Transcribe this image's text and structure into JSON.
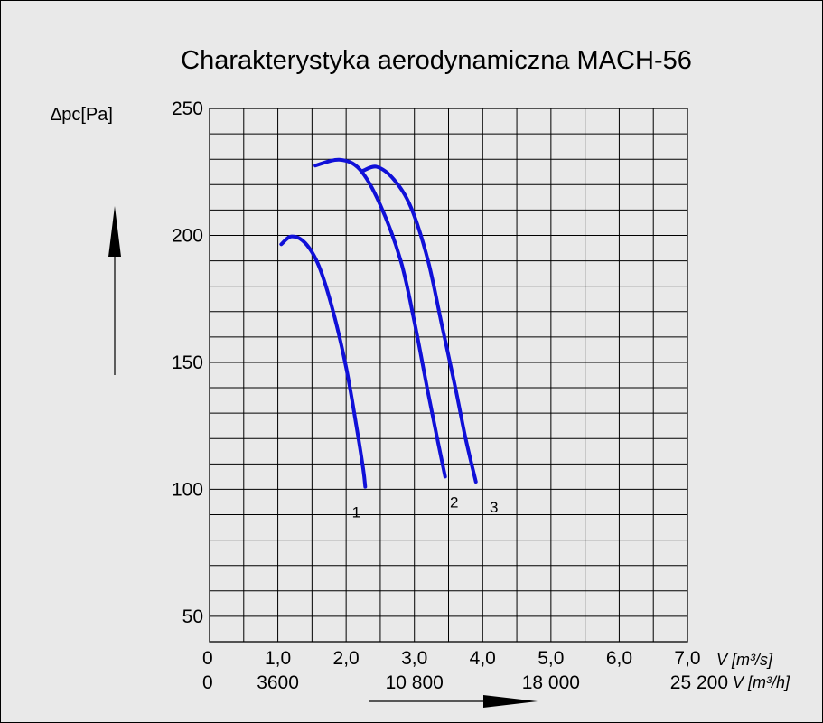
{
  "chart_data": {
    "type": "line",
    "title": "Charakterystyka aerodynamiczna MACH-56",
    "ylabel": "∆pc[Pa]",
    "xlabel_primary_unit": "V [m³/s]",
    "xlabel_secondary_unit": "V [m³/h]",
    "xlim": [
      0,
      7.0
    ],
    "ylim": [
      40,
      250
    ],
    "y_ticks": [
      "250",
      "200",
      "150",
      "100",
      "50"
    ],
    "x_ticks_primary": [
      "0",
      "1,0",
      "2,0",
      "3,0",
      "4,0",
      "5,0",
      "6,0",
      "7,0"
    ],
    "x_ticks_secondary": [
      "0",
      "3600",
      "10 800",
      "18 000",
      "25 200"
    ],
    "grid": true,
    "series": [
      {
        "name": "1",
        "color": "#1010d8",
        "points": [
          [
            1.05,
            196.5
          ],
          [
            1.2,
            199.6
          ],
          [
            1.4,
            197
          ],
          [
            1.6,
            188
          ],
          [
            1.8,
            171
          ],
          [
            2.0,
            148
          ],
          [
            2.15,
            125
          ],
          [
            2.25,
            108
          ],
          [
            2.28,
            101
          ]
        ]
      },
      {
        "name": "2",
        "color": "#1010d8",
        "points": [
          [
            1.55,
            227.5
          ],
          [
            1.9,
            229.8
          ],
          [
            2.2,
            226
          ],
          [
            2.5,
            212
          ],
          [
            2.8,
            190
          ],
          [
            3.0,
            166
          ],
          [
            3.2,
            138
          ],
          [
            3.35,
            118
          ],
          [
            3.45,
            105
          ]
        ]
      },
      {
        "name": "3",
        "color": "#1010d8",
        "points": [
          [
            2.25,
            225.5
          ],
          [
            2.45,
            227
          ],
          [
            2.7,
            222
          ],
          [
            2.95,
            211
          ],
          [
            3.2,
            190
          ],
          [
            3.4,
            165
          ],
          [
            3.6,
            140
          ],
          [
            3.75,
            120
          ],
          [
            3.9,
            103
          ]
        ]
      }
    ]
  }
}
